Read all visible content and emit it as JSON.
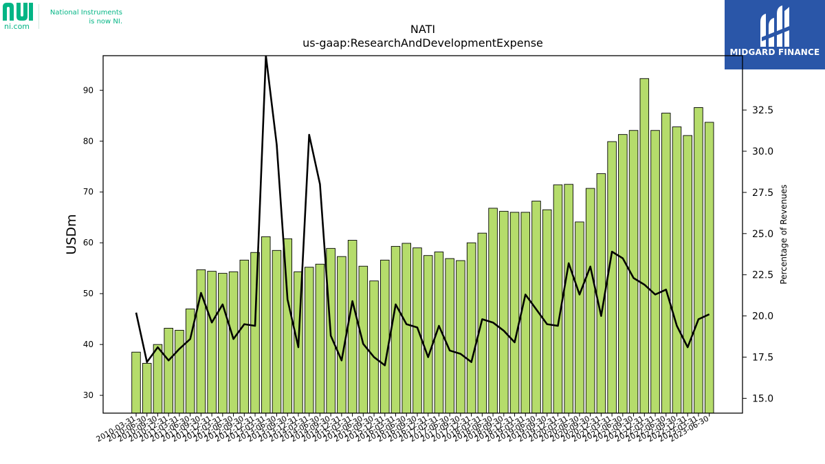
{
  "logos": {
    "ni_domain": "ni.com",
    "ni_tagline_line1": "National Instruments",
    "ni_tagline_line2": "is now NI.",
    "ni_brand_color": "#03b585",
    "midgard_name": "MIDGARD FINANCE",
    "midgard_color": "#2a56a8"
  },
  "chart_data": {
    "type": "bar",
    "title": "NATI",
    "subtitle": "us-gaap:ResearchAndDevelopmentExpense",
    "ylabel": "USDm",
    "y2label": "Percentage of Revenues",
    "ylim": [
      26.5,
      96.8
    ],
    "y2lim": [
      14.1,
      35.8
    ],
    "yticks": [
      30,
      40,
      50,
      60,
      70,
      80,
      90
    ],
    "y2ticks": [
      15.0,
      17.5,
      20.0,
      22.5,
      25.0,
      27.5,
      30.0,
      32.5
    ],
    "y2tick_labels": [
      "15.0",
      "17.5",
      "20.0",
      "22.5",
      "25.0",
      "27.5",
      "30.0",
      "32.5"
    ],
    "bar_color": "#b5dc6b",
    "line_color": "#000000",
    "categories": [
      "2010-03-31",
      "2010-06-30",
      "2010-09-30",
      "2010-12-31",
      "2011-03-31",
      "2011-06-30",
      "2011-09-30",
      "2011-12-31",
      "2012-03-31",
      "2012-06-30",
      "2012-09-30",
      "2012-12-31",
      "2013-03-31",
      "2013-06-30",
      "2013-09-30",
      "2013-12-31",
      "2014-03-31",
      "2014-06-30",
      "2014-09-30",
      "2014-12-31",
      "2015-03-31",
      "2015-06-30",
      "2015-09-30",
      "2015-12-31",
      "2016-03-31",
      "2016-06-30",
      "2016-09-30",
      "2016-12-31",
      "2017-03-31",
      "2017-06-30",
      "2017-09-30",
      "2017-12-31",
      "2018-03-31",
      "2018-06-30",
      "2018-09-30",
      "2018-12-31",
      "2019-03-31",
      "2019-06-30",
      "2019-09-30",
      "2019-12-31",
      "2020-03-31",
      "2020-06-30",
      "2020-09-30",
      "2020-12-31",
      "2021-03-31",
      "2021-06-30",
      "2021-09-30",
      "2021-12-31",
      "2022-03-31",
      "2022-06-30",
      "2022-09-30",
      "2022-12-31",
      "2023-03-31",
      "2023-06-30"
    ],
    "series": [
      {
        "axis": "left",
        "mark": "bar",
        "values": [
          38.5,
          36.3,
          40.0,
          43.2,
          42.8,
          47.0,
          54.7,
          54.4,
          54.0,
          54.3,
          56.6,
          58.1,
          61.2,
          58.5,
          60.8,
          54.3,
          55.2,
          55.8,
          58.9,
          57.3,
          60.5,
          55.4,
          52.5,
          56.6,
          59.3,
          59.9,
          59.0,
          57.5,
          58.2,
          56.9,
          56.5,
          60.0,
          61.9,
          66.8,
          66.2,
          66.0,
          66.0,
          68.2,
          66.5,
          71.4,
          71.5,
          64.1,
          70.7,
          73.6,
          79.9,
          81.3,
          82.1,
          92.3,
          82.1,
          85.5,
          82.8,
          81.1,
          86.6,
          83.7
        ]
      },
      {
        "axis": "right",
        "mark": "line",
        "values": [
          20.2,
          17.2,
          18.1,
          17.3,
          18.0,
          18.6,
          21.4,
          19.6,
          20.7,
          18.6,
          19.5,
          19.4,
          35.8,
          30.4,
          21.0,
          18.1,
          31.0,
          28.0,
          18.8,
          17.3,
          20.9,
          18.3,
          17.5,
          17.0,
          20.7,
          19.5,
          19.3,
          17.5,
          19.4,
          17.9,
          17.7,
          17.2,
          19.8,
          19.6,
          19.1,
          18.4,
          21.3,
          20.4,
          19.5,
          19.4,
          23.2,
          21.3,
          23.0,
          20.0,
          23.9,
          23.5,
          22.3,
          21.9,
          21.3,
          21.6,
          19.4,
          18.1,
          19.8,
          20.1
        ]
      }
    ]
  }
}
